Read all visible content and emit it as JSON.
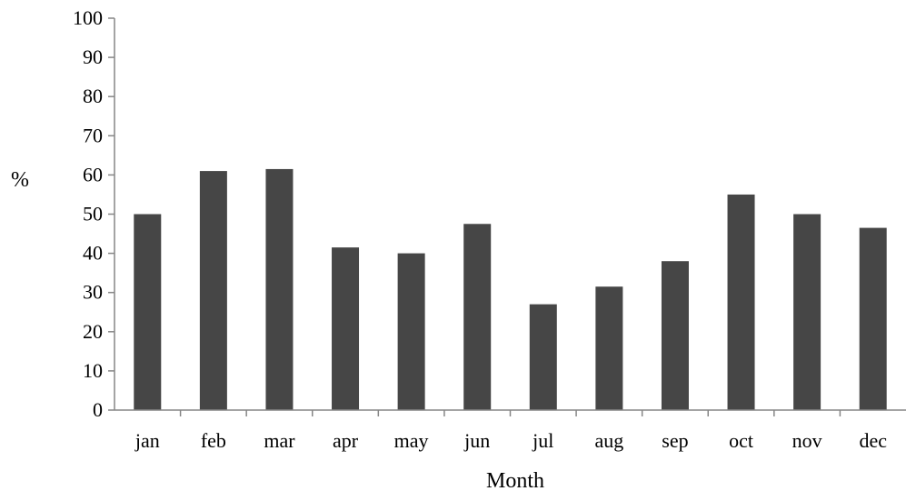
{
  "chart_data": {
    "type": "bar",
    "title": "",
    "xlabel": "Month",
    "ylabel": "%",
    "ylim": [
      0,
      100
    ],
    "yticks": [
      0,
      10,
      20,
      30,
      40,
      50,
      60,
      70,
      80,
      90,
      100
    ],
    "grid": false,
    "legend": "none",
    "bar_color": "#464646",
    "axis_color": "#868686",
    "categories": [
      "jan",
      "feb",
      "mar",
      "apr",
      "may",
      "jun",
      "jul",
      "aug",
      "sep",
      "oct",
      "nov",
      "dec"
    ],
    "values": [
      50,
      61,
      61.5,
      41.5,
      40,
      47.5,
      27,
      31.5,
      38,
      55,
      50,
      46.5
    ]
  }
}
